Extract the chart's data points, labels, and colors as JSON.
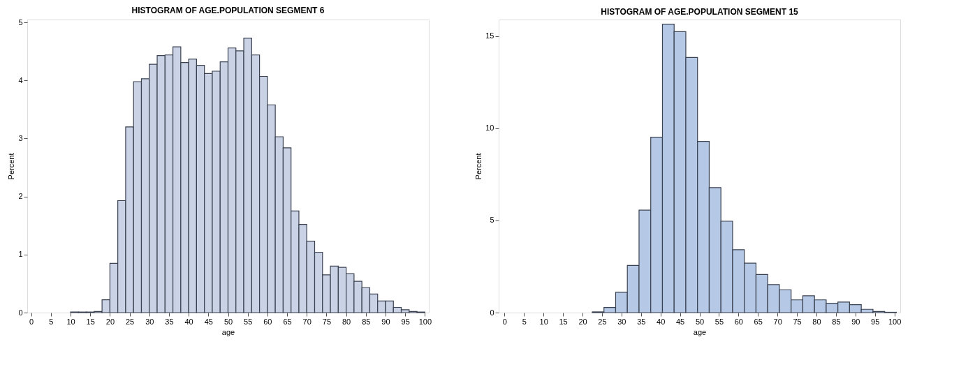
{
  "chart_data": [
    {
      "type": "histogram",
      "title": "HISTOGRAM OF AGE.POPULATION SEGMENT 6",
      "xlabel": "age",
      "ylabel": "Percent",
      "color": "#c9d3e5",
      "bins": [
        10,
        12,
        14,
        16,
        18,
        20,
        22,
        24,
        26,
        28,
        30,
        32,
        34,
        36,
        38,
        40,
        42,
        44,
        46,
        48,
        50,
        52,
        54,
        56,
        58,
        60,
        62,
        64,
        66,
        68,
        70,
        72,
        74,
        76,
        78,
        80,
        82,
        84,
        86,
        88,
        90,
        92,
        94,
        96,
        98,
        100
      ],
      "values": [
        0.01,
        0.01,
        0.01,
        0.02,
        0.22,
        0.85,
        1.93,
        3.2,
        3.98,
        4.03,
        4.28,
        4.43,
        4.44,
        4.58,
        4.31,
        4.37,
        4.26,
        4.12,
        4.16,
        4.32,
        4.56,
        4.51,
        4.73,
        4.44,
        4.07,
        3.58,
        3.03,
        2.84,
        1.75,
        1.52,
        1.23,
        1.04,
        0.65,
        0.8,
        0.78,
        0.67,
        0.54,
        0.43,
        0.32,
        0.2,
        0.2,
        0.09,
        0.05,
        0.02,
        0.01
      ],
      "xlim": [
        -1,
        101
      ],
      "ylim": [
        0,
        5.05
      ],
      "xticks": [
        0,
        5,
        10,
        15,
        20,
        25,
        30,
        35,
        40,
        45,
        50,
        55,
        60,
        65,
        70,
        75,
        80,
        85,
        90,
        95,
        100
      ],
      "yticks": [
        0,
        1,
        2,
        3,
        4,
        5
      ],
      "grid": false
    },
    {
      "type": "histogram",
      "title": "HISTOGRAM OF AGE.POPULATION SEGMENT 15",
      "xlabel": "age",
      "ylabel": "Percent",
      "color": "#b5c9e6",
      "bins": [
        22.5,
        25.5,
        28.5,
        31.5,
        34.5,
        37.5,
        40.5,
        43.5,
        46.5,
        49.5,
        52.5,
        55.5,
        58.5,
        61.5,
        64.5,
        67.5,
        70.5,
        73.5,
        76.5,
        79.5,
        82.5,
        85.5,
        88.5,
        91.5,
        94.5,
        97.5,
        100.5
      ],
      "values": [
        0.04,
        0.28,
        1.1,
        2.56,
        5.56,
        9.52,
        15.65,
        15.24,
        13.84,
        9.29,
        6.78,
        4.96,
        3.41,
        2.68,
        2.07,
        1.52,
        1.24,
        0.69,
        0.91,
        0.69,
        0.51,
        0.57,
        0.43,
        0.18,
        0.06,
        0.02
      ],
      "xlim": [
        -1.5,
        101.5
      ],
      "ylim": [
        0,
        15.9
      ],
      "xticks": [
        0,
        5,
        10,
        15,
        20,
        25,
        30,
        35,
        40,
        45,
        50,
        55,
        60,
        65,
        70,
        75,
        80,
        85,
        90,
        95,
        100
      ],
      "yticks": [
        0,
        5,
        10,
        15
      ],
      "grid": false
    }
  ]
}
